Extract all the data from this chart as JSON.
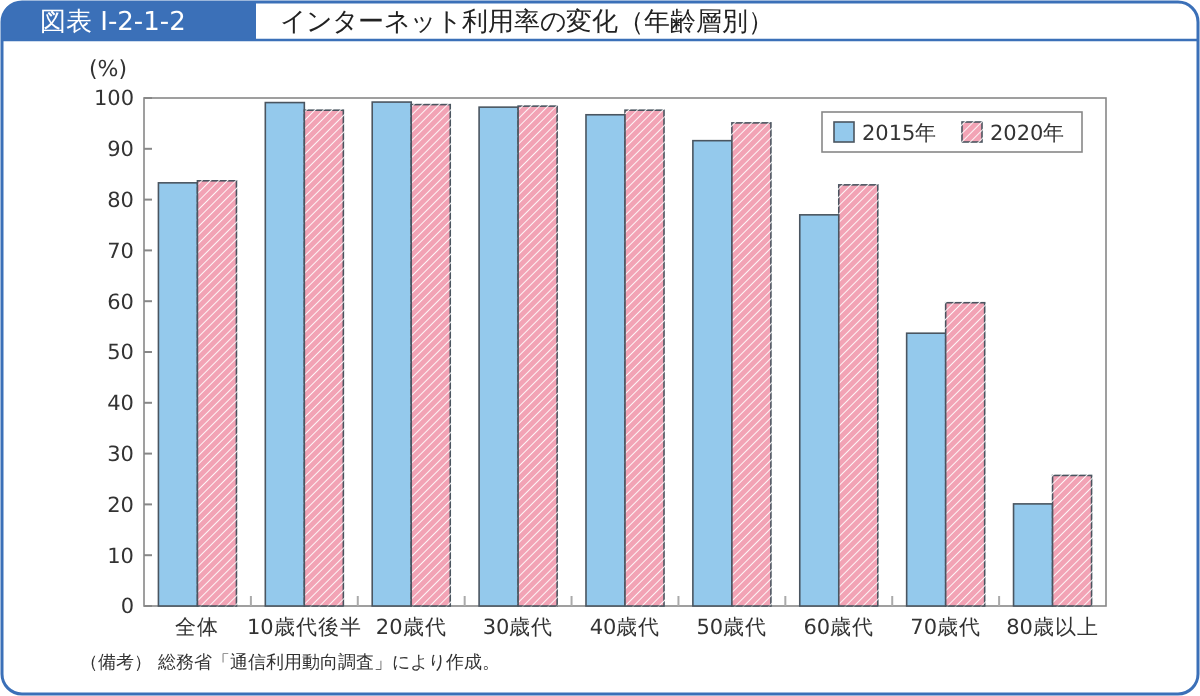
{
  "chart_data": {
    "type": "bar",
    "title": "インターネット利用率の変化（年齢層別）",
    "subtitle": "図表 I-2-1-2",
    "ylabel": "(%)",
    "categories": [
      "全体",
      "10歳代後半",
      "20歳代",
      "30歳代",
      "40歳代",
      "50歳代",
      "60歳代",
      "70歳代",
      "80歳以上"
    ],
    "series": [
      {
        "name": "2015年",
        "color": "#94c9ec",
        "values": [
          83.3,
          99.1,
          99.2,
          98.2,
          96.7,
          91.6,
          77.0,
          53.7,
          20.1
        ]
      },
      {
        "name": "2020年",
        "color": "#f2a3b5",
        "values": [
          83.7,
          97.6,
          98.7,
          98.4,
          97.6,
          95.1,
          82.9,
          59.7,
          25.7
        ]
      }
    ],
    "ylim": [
      0,
      100
    ],
    "yticks": [
      0,
      10,
      20,
      30,
      40,
      50,
      60,
      70,
      80,
      90,
      100
    ],
    "grid": false,
    "legend": "top right",
    "annotations": [
      "（備考） 総務省「通信利用動向調査」により作成。"
    ]
  }
}
